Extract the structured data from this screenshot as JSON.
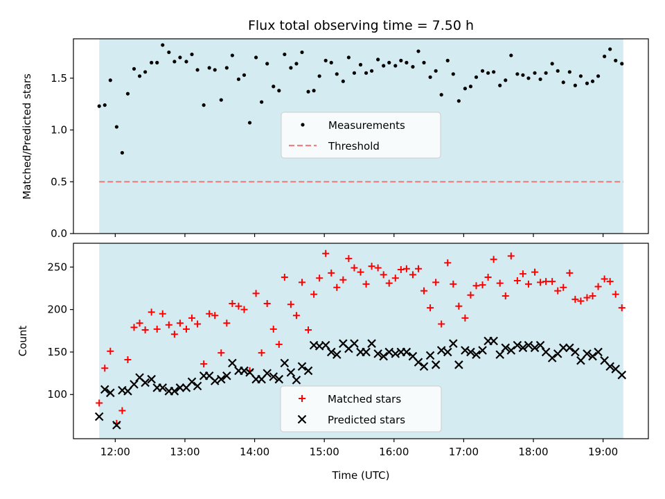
{
  "chart_data": [
    {
      "type": "scatter",
      "title": "Flux total observing time = 7.50 h",
      "xlabel": "",
      "ylabel": "Matched/Predicted stars",
      "ylim": [
        0,
        1.88
      ],
      "yticks": [
        0.0,
        0.5,
        1.0,
        1.5
      ],
      "ytick_labels": [
        "0.0",
        "0.5",
        "1.0",
        "1.5"
      ],
      "xlim": [
        11.4,
        19.65
      ],
      "xticks": [
        12,
        13,
        14,
        15,
        16,
        17,
        18,
        19
      ],
      "shaded_span": [
        11.77,
        19.29
      ],
      "shaded_color": "#d4ebf1",
      "threshold": 0.5,
      "threshold_color": "#f08080",
      "marker_color": "#000000",
      "legend": {
        "position": "center",
        "entries": [
          "Measurements",
          "Threshold"
        ]
      },
      "series": [
        {
          "name": "Measurements",
          "marker": "dot",
          "x": [
            11.77,
            11.85,
            11.93,
            12.02,
            12.1,
            12.18,
            12.27,
            12.35,
            12.43,
            12.52,
            12.6,
            12.68,
            12.77,
            12.85,
            12.93,
            13.02,
            13.1,
            13.18,
            13.27,
            13.35,
            13.43,
            13.52,
            13.6,
            13.68,
            13.77,
            13.85,
            13.93,
            14.02,
            14.1,
            14.18,
            14.27,
            14.35,
            14.43,
            14.52,
            14.6,
            14.68,
            14.77,
            14.85,
            14.93,
            15.02,
            15.1,
            15.18,
            15.27,
            15.35,
            15.43,
            15.52,
            15.6,
            15.68,
            15.77,
            15.85,
            15.93,
            16.02,
            16.1,
            16.18,
            16.27,
            16.35,
            16.43,
            16.52,
            16.6,
            16.68,
            16.77,
            16.85,
            16.93,
            17.02,
            17.1,
            17.18,
            17.27,
            17.35,
            17.43,
            17.52,
            17.6,
            17.68,
            17.77,
            17.85,
            17.93,
            18.02,
            18.1,
            18.18,
            18.27,
            18.35,
            18.43,
            18.52,
            18.6,
            18.68,
            18.77,
            18.85,
            18.93,
            19.02,
            19.1,
            19.18,
            19.27
          ],
          "y": [
            1.23,
            1.24,
            1.48,
            1.03,
            0.78,
            1.35,
            1.59,
            1.52,
            1.56,
            1.65,
            1.65,
            1.82,
            1.75,
            1.66,
            1.7,
            1.66,
            1.73,
            1.58,
            1.24,
            1.6,
            1.58,
            1.29,
            1.6,
            1.72,
            1.49,
            1.53,
            1.07,
            1.7,
            1.27,
            1.64,
            1.42,
            1.38,
            1.73,
            1.6,
            1.64,
            1.75,
            1.37,
            1.38,
            1.52,
            1.67,
            1.65,
            1.54,
            1.47,
            1.7,
            1.55,
            1.63,
            1.55,
            1.57,
            1.68,
            1.62,
            1.65,
            1.62,
            1.67,
            1.65,
            1.61,
            1.76,
            1.65,
            1.51,
            1.57,
            1.34,
            1.67,
            1.54,
            1.28,
            1.4,
            1.42,
            1.51,
            1.57,
            1.55,
            1.56,
            1.43,
            1.48,
            1.72,
            1.54,
            1.53,
            1.5,
            1.55,
            1.49,
            1.55,
            1.64,
            1.57,
            1.46,
            1.56,
            1.43,
            1.52,
            1.45,
            1.47,
            1.52,
            1.71,
            1.78,
            1.67,
            1.64
          ]
        }
      ]
    },
    {
      "type": "scatter",
      "title": "",
      "xlabel": "Time (UTC)",
      "ylabel": "Count",
      "ylim": [
        48,
        278
      ],
      "yticks": [
        100,
        150,
        200,
        250
      ],
      "ytick_labels": [
        "100",
        "150",
        "200",
        "250"
      ],
      "xlim": [
        11.4,
        19.65
      ],
      "xticks": [
        12,
        13,
        14,
        15,
        16,
        17,
        18,
        19
      ],
      "xtick_labels": [
        "12:00",
        "13:00",
        "14:00",
        "15:00",
        "16:00",
        "17:00",
        "18:00",
        "19:00"
      ],
      "shaded_span": [
        11.77,
        19.29
      ],
      "shaded_color": "#d4ebf1",
      "legend": {
        "position": "bottom-center",
        "entries": [
          "Matched stars",
          "Predicted stars"
        ]
      },
      "series": [
        {
          "name": "Matched stars",
          "marker": "plus",
          "color": "#ff0000",
          "x": [
            11.77,
            11.85,
            11.93,
            12.02,
            12.1,
            12.18,
            12.27,
            12.35,
            12.43,
            12.52,
            12.6,
            12.68,
            12.77,
            12.85,
            12.93,
            13.02,
            13.1,
            13.18,
            13.27,
            13.35,
            13.43,
            13.52,
            13.6,
            13.68,
            13.77,
            13.85,
            13.93,
            14.02,
            14.1,
            14.18,
            14.27,
            14.35,
            14.43,
            14.52,
            14.6,
            14.68,
            14.77,
            14.85,
            14.93,
            15.02,
            15.1,
            15.18,
            15.27,
            15.35,
            15.43,
            15.52,
            15.6,
            15.68,
            15.77,
            15.85,
            15.93,
            16.02,
            16.1,
            16.18,
            16.27,
            16.35,
            16.43,
            16.52,
            16.6,
            16.68,
            16.77,
            16.85,
            16.93,
            17.02,
            17.1,
            17.18,
            17.27,
            17.35,
            17.43,
            17.52,
            17.6,
            17.68,
            17.77,
            17.85,
            17.93,
            18.02,
            18.1,
            18.18,
            18.27,
            18.35,
            18.43,
            18.52,
            18.6,
            18.68,
            18.77,
            18.85,
            18.93,
            19.02,
            19.1,
            19.18,
            19.27
          ],
          "y": [
            90,
            131,
            151,
            66,
            81,
            141,
            179,
            184,
            176,
            197,
            177,
            195,
            182,
            171,
            184,
            177,
            190,
            183,
            136,
            195,
            193,
            149,
            184,
            207,
            204,
            200,
            128,
            219,
            149,
            207,
            177,
            159,
            238,
            206,
            193,
            232,
            176,
            218,
            237,
            266,
            243,
            226,
            235,
            260,
            249,
            244,
            230,
            251,
            249,
            241,
            231,
            237,
            247,
            248,
            241,
            248,
            222,
            202,
            232,
            183,
            255,
            230,
            204,
            190,
            217,
            228,
            229,
            238,
            259,
            231,
            216,
            263,
            234,
            242,
            230,
            244,
            232,
            233,
            233,
            222,
            226,
            243,
            212,
            210,
            214,
            216,
            227,
            236,
            233,
            218,
            202
          ]
        },
        {
          "name": "Predicted stars",
          "marker": "x",
          "color": "#000000",
          "x": [
            11.77,
            11.85,
            11.93,
            12.02,
            12.1,
            12.18,
            12.27,
            12.35,
            12.43,
            12.52,
            12.6,
            12.68,
            12.77,
            12.85,
            12.93,
            13.02,
            13.1,
            13.18,
            13.27,
            13.35,
            13.43,
            13.52,
            13.6,
            13.68,
            13.77,
            13.85,
            13.93,
            14.02,
            14.1,
            14.18,
            14.27,
            14.35,
            14.43,
            14.52,
            14.6,
            14.68,
            14.77,
            14.85,
            14.93,
            15.02,
            15.1,
            15.18,
            15.27,
            15.35,
            15.43,
            15.52,
            15.6,
            15.68,
            15.77,
            15.85,
            15.93,
            16.02,
            16.1,
            16.18,
            16.27,
            16.35,
            16.43,
            16.52,
            16.6,
            16.68,
            16.77,
            16.85,
            16.93,
            17.02,
            17.1,
            17.18,
            17.27,
            17.35,
            17.43,
            17.52,
            17.6,
            17.68,
            17.77,
            17.85,
            17.93,
            18.02,
            18.1,
            18.18,
            18.27,
            18.35,
            18.43,
            18.52,
            18.6,
            18.68,
            18.77,
            18.85,
            18.93,
            19.02,
            19.1,
            19.18,
            19.27
          ],
          "y": [
            74,
            106,
            102,
            64,
            105,
            104,
            112,
            120,
            114,
            118,
            108,
            108,
            104,
            104,
            108,
            108,
            115,
            110,
            122,
            122,
            116,
            118,
            122,
            137,
            128,
            128,
            126,
            118,
            118,
            125,
            121,
            118,
            137,
            126,
            117,
            133,
            128,
            158,
            157,
            158,
            150,
            147,
            160,
            154,
            160,
            150,
            150,
            160,
            148,
            145,
            150,
            148,
            150,
            150,
            145,
            138,
            133,
            146,
            135,
            152,
            150,
            160,
            135,
            152,
            150,
            147,
            152,
            163,
            163,
            147,
            155,
            152,
            158,
            155,
            158,
            155,
            158,
            150,
            143,
            148,
            155,
            155,
            150,
            140,
            148,
            145,
            150,
            140,
            133,
            130,
            123
          ]
        }
      ]
    }
  ]
}
